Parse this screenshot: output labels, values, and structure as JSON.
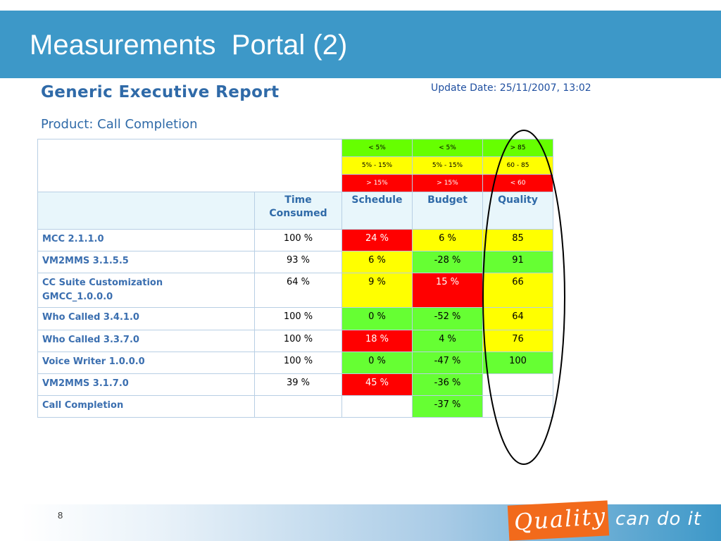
{
  "slide": {
    "title": "Measurements  Portal (2)",
    "page_number": "8"
  },
  "report": {
    "title": "Generic Executive Report",
    "update_date": "Update Date: 25/11/2007, 13:02",
    "product": "Product: Call Completion",
    "legend": {
      "schedule": [
        "< 5%",
        "5% - 15%",
        "> 15%"
      ],
      "budget": [
        "< 5%",
        "5% - 15%",
        "> 15%"
      ],
      "quality": [
        "> 85",
        "60 - 85",
        "< 60"
      ]
    },
    "columns": {
      "time_line1": "Time",
      "time_line2": "Consumed",
      "schedule": "Schedule",
      "budget": "Budget",
      "quality": "Quality"
    },
    "rows": [
      {
        "name_line1": "MCC 2.1.1.0",
        "name_line2": "",
        "time": "100 %",
        "schedule": "24 %",
        "budget": "6 %",
        "quality": "85"
      },
      {
        "name_line1": "VM2MMS 3.1.5.5",
        "name_line2": "",
        "time": "93 %",
        "schedule": "6 %",
        "budget": "-28 %",
        "quality": "91"
      },
      {
        "name_line1": "CC Suite Customization",
        "name_line2": "GMCC_1.0.0.0",
        "time": "64 %",
        "schedule": "9 %",
        "budget": "15 %",
        "quality": "66"
      },
      {
        "name_line1": "Who Called 3.4.1.0",
        "name_line2": "",
        "time": "100 %",
        "schedule": "0 %",
        "budget": "-52 %",
        "quality": "64"
      },
      {
        "name_line1": "Who Called 3.3.7.0",
        "name_line2": "",
        "time": "100 %",
        "schedule": "18 %",
        "budget": "4 %",
        "quality": "76"
      },
      {
        "name_line1": "Voice Writer 1.0.0.0",
        "name_line2": "",
        "time": "100 %",
        "schedule": "0 %",
        "budget": "-47 %",
        "quality": "100"
      },
      {
        "name_line1": "VM2MMS 3.1.7.0",
        "name_line2": "",
        "time": "39 %",
        "schedule": "45 %",
        "budget": "-36 %",
        "quality": ""
      },
      {
        "name_line1": "Call Completion",
        "name_line2": "",
        "time": "",
        "schedule": "",
        "budget": "-37 %",
        "quality": ""
      }
    ]
  },
  "branding": {
    "quality_word": "Quality",
    "tagline": "can do it"
  },
  "colors": {
    "header_blue": "#3d98c8",
    "status_green": "#66ff33",
    "status_yellow": "#ffff00",
    "status_red": "#ff0000",
    "badge_orange": "#f26a1b"
  }
}
